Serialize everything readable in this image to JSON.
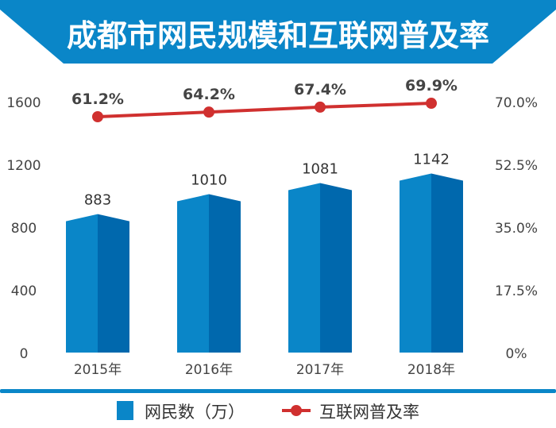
{
  "chart_data": {
    "type": "bar+line",
    "title": "成都市网民规模和互联网普及率",
    "categories": [
      "2015年",
      "2016年",
      "2017年",
      "2018年"
    ],
    "series": [
      {
        "name": "网民数（万）",
        "type": "bar",
        "axis": "left",
        "values": [
          883,
          1010,
          1081,
          1142
        ],
        "labels": [
          "883",
          "1010",
          "1081",
          "1142"
        ],
        "color": "#0a86c8"
      },
      {
        "name": "互联网普及率",
        "type": "line",
        "axis": "right",
        "values": [
          61.2,
          64.2,
          67.4,
          69.9
        ],
        "labels": [
          "61.2%",
          "64.2%",
          "67.4%",
          "69.9%"
        ],
        "color": "#d0302f"
      }
    ],
    "left_axis": {
      "ticks": [
        "0",
        "400",
        "800",
        "1200",
        "1600"
      ],
      "ylim": [
        0,
        1600
      ]
    },
    "right_axis": {
      "ticks": [
        "0%",
        "17.5%",
        "35.0%",
        "52.5%",
        "70.0%"
      ],
      "ylim": [
        0,
        70
      ]
    },
    "legend": {
      "placement": "bottom",
      "items": [
        "网民数（万）",
        "互联网普及率"
      ]
    },
    "grid": false
  },
  "colors": {
    "banner": "#0a86c8",
    "bar_light": "#0a86c8",
    "bar_dark": "#0068ad",
    "line": "#d0302f"
  }
}
